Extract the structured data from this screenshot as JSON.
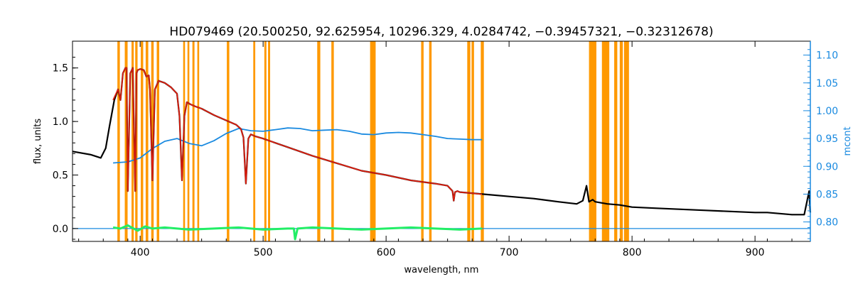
{
  "chart_data": {
    "type": "line",
    "title": "HD079469    (20.500250, 92.625954, 10296.329, 4.0284742, −0.39457321, −0.32312678)",
    "xlabel": "wavelength, nm",
    "ylabel_left": "flux, units",
    "ylabel_right": "mcont",
    "xlim": [
      345,
      945
    ],
    "ylim_left": [
      -0.12,
      1.75
    ],
    "ylim_right": [
      0.765,
      1.125
    ],
    "x_ticks": [
      "400",
      "500",
      "600",
      "700",
      "800",
      "900"
    ],
    "y_ticks_left": [
      "0.0",
      "0.5",
      "1.0",
      "1.5"
    ],
    "y_ticks_right": [
      "0.80",
      "0.85",
      "0.90",
      "0.95",
      "1.00",
      "1.05",
      "1.10"
    ],
    "colors": {
      "observed": "#000000",
      "model": "#dd1f10",
      "residual": "#22ee66",
      "mcont": "#1a8ae0",
      "masks": "#ff9900",
      "right_axis": "#1a8ae0"
    },
    "masked_bands_nm": [
      [
        381.5,
        383.5
      ],
      [
        387.5,
        389.8
      ],
      [
        393.0,
        394.8
      ],
      [
        396.0,
        397.9
      ],
      [
        400.5,
        402.5
      ],
      [
        404.5,
        406.6
      ],
      [
        409.0,
        411.0
      ],
      [
        413.5,
        415.5
      ],
      [
        435.0,
        436.5
      ],
      [
        438.5,
        440.0
      ],
      [
        442.5,
        444.2
      ],
      [
        446.5,
        448.0
      ],
      [
        470.5,
        472.5
      ],
      [
        492.0,
        493.6
      ],
      [
        501.0,
        502.7
      ],
      [
        504.0,
        505.7
      ],
      [
        544.0,
        546.5
      ],
      [
        555.5,
        557.5
      ],
      [
        587.0,
        591.5
      ],
      [
        628.5,
        630.5
      ],
      [
        635.0,
        637.0
      ],
      [
        666.0,
        668.5
      ],
      [
        669.5,
        671.5
      ],
      [
        677.0,
        679.5
      ],
      [
        765.0,
        771.0
      ],
      [
        775.5,
        781.5
      ],
      [
        785.5,
        788.0
      ],
      [
        790.0,
        792.5
      ],
      [
        793.5,
        797.5
      ]
    ],
    "series": [
      {
        "role": "observed",
        "x": [
          345,
          360,
          368,
          372,
          375,
          379,
          382,
          384,
          386,
          388,
          389,
          390,
          392,
          394,
          396,
          397,
          398,
          400,
          403,
          405,
          407,
          408,
          410,
          412,
          415,
          420,
          425,
          430,
          432,
          434,
          436,
          438,
          441,
          445,
          450,
          460,
          470,
          478,
          482,
          484,
          486,
          488,
          490,
          494,
          500,
          510,
          520,
          540,
          560,
          580,
          600,
          620,
          640,
          650,
          654,
          655,
          656,
          658,
          660,
          670,
          680,
          700,
          720,
          740,
          755,
          760,
          763,
          765,
          768,
          770,
          780,
          790,
          800,
          820,
          840,
          860,
          880,
          900,
          910,
          920,
          930,
          940,
          944,
          945
        ],
        "y": [
          0.72,
          0.69,
          0.66,
          0.75,
          0.95,
          1.2,
          1.3,
          1.2,
          1.45,
          1.5,
          1.5,
          0.35,
          1.45,
          1.5,
          0.35,
          1.45,
          1.48,
          1.49,
          1.48,
          1.42,
          1.43,
          1.3,
          0.45,
          1.3,
          1.38,
          1.36,
          1.32,
          1.26,
          1.05,
          0.45,
          1.05,
          1.18,
          1.16,
          1.14,
          1.12,
          1.06,
          1.01,
          0.97,
          0.93,
          0.85,
          0.42,
          0.84,
          0.88,
          0.86,
          0.84,
          0.8,
          0.76,
          0.68,
          0.61,
          0.54,
          0.5,
          0.45,
          0.42,
          0.4,
          0.35,
          0.26,
          0.34,
          0.35,
          0.34,
          0.33,
          0.32,
          0.3,
          0.28,
          0.25,
          0.23,
          0.26,
          0.4,
          0.25,
          0.27,
          0.25,
          0.23,
          0.22,
          0.2,
          0.19,
          0.18,
          0.17,
          0.16,
          0.15,
          0.15,
          0.14,
          0.13,
          0.13,
          0.35,
          0.15
        ]
      },
      {
        "role": "model",
        "x": [
          378,
          382,
          384,
          386,
          388,
          389,
          390,
          392,
          394,
          396,
          397,
          398,
          400,
          403,
          405,
          407,
          408,
          410,
          412,
          415,
          420,
          425,
          430,
          432,
          434,
          436,
          438,
          441,
          445,
          450,
          460,
          470,
          478,
          482,
          484,
          486,
          488,
          490,
          494,
          500,
          510,
          520,
          540,
          560,
          580,
          600,
          620,
          640,
          650,
          654,
          655,
          656,
          658,
          660,
          670,
          678
        ],
        "y": [
          1.2,
          1.3,
          1.2,
          1.45,
          1.5,
          1.5,
          0.35,
          1.45,
          1.5,
          0.35,
          1.45,
          1.48,
          1.49,
          1.48,
          1.42,
          1.43,
          1.3,
          0.45,
          1.3,
          1.38,
          1.36,
          1.32,
          1.26,
          1.05,
          0.45,
          1.05,
          1.18,
          1.16,
          1.14,
          1.12,
          1.06,
          1.01,
          0.97,
          0.93,
          0.85,
          0.42,
          0.84,
          0.88,
          0.86,
          0.84,
          0.8,
          0.76,
          0.68,
          0.61,
          0.54,
          0.5,
          0.45,
          0.42,
          0.4,
          0.35,
          0.26,
          0.34,
          0.35,
          0.34,
          0.33,
          0.32
        ]
      },
      {
        "role": "mcont",
        "axis": "right",
        "x": [
          378,
          390,
          400,
          410,
          420,
          430,
          440,
          450,
          460,
          470,
          480,
          490,
          500,
          510,
          520,
          530,
          540,
          550,
          560,
          570,
          580,
          590,
          600,
          610,
          620,
          630,
          640,
          650,
          660,
          670,
          678
        ],
        "y": [
          0.906,
          0.908,
          0.915,
          0.932,
          0.945,
          0.95,
          0.941,
          0.937,
          0.946,
          0.959,
          0.968,
          0.964,
          0.963,
          0.966,
          0.969,
          0.968,
          0.964,
          0.965,
          0.966,
          0.963,
          0.958,
          0.957,
          0.96,
          0.961,
          0.96,
          0.957,
          0.954,
          0.95,
          0.949,
          0.948,
          0.948
        ]
      },
      {
        "role": "residual",
        "x": [
          378,
          384,
          390,
          398,
          404,
          410,
          420,
          440,
          460,
          480,
          500,
          520,
          525,
          526,
          528,
          540,
          560,
          580,
          600,
          620,
          640,
          660,
          678
        ],
        "y": [
          0.01,
          0.0,
          0.03,
          -0.02,
          0.02,
          0.0,
          0.01,
          -0.01,
          0.0,
          0.01,
          -0.01,
          0.0,
          0.0,
          -0.1,
          0.0,
          0.01,
          0.0,
          -0.01,
          0.0,
          0.01,
          0.0,
          -0.01,
          0.0
        ]
      }
    ],
    "zero_line": {
      "axis": "left",
      "y": 0.0,
      "x": [
        345,
        945
      ]
    }
  }
}
